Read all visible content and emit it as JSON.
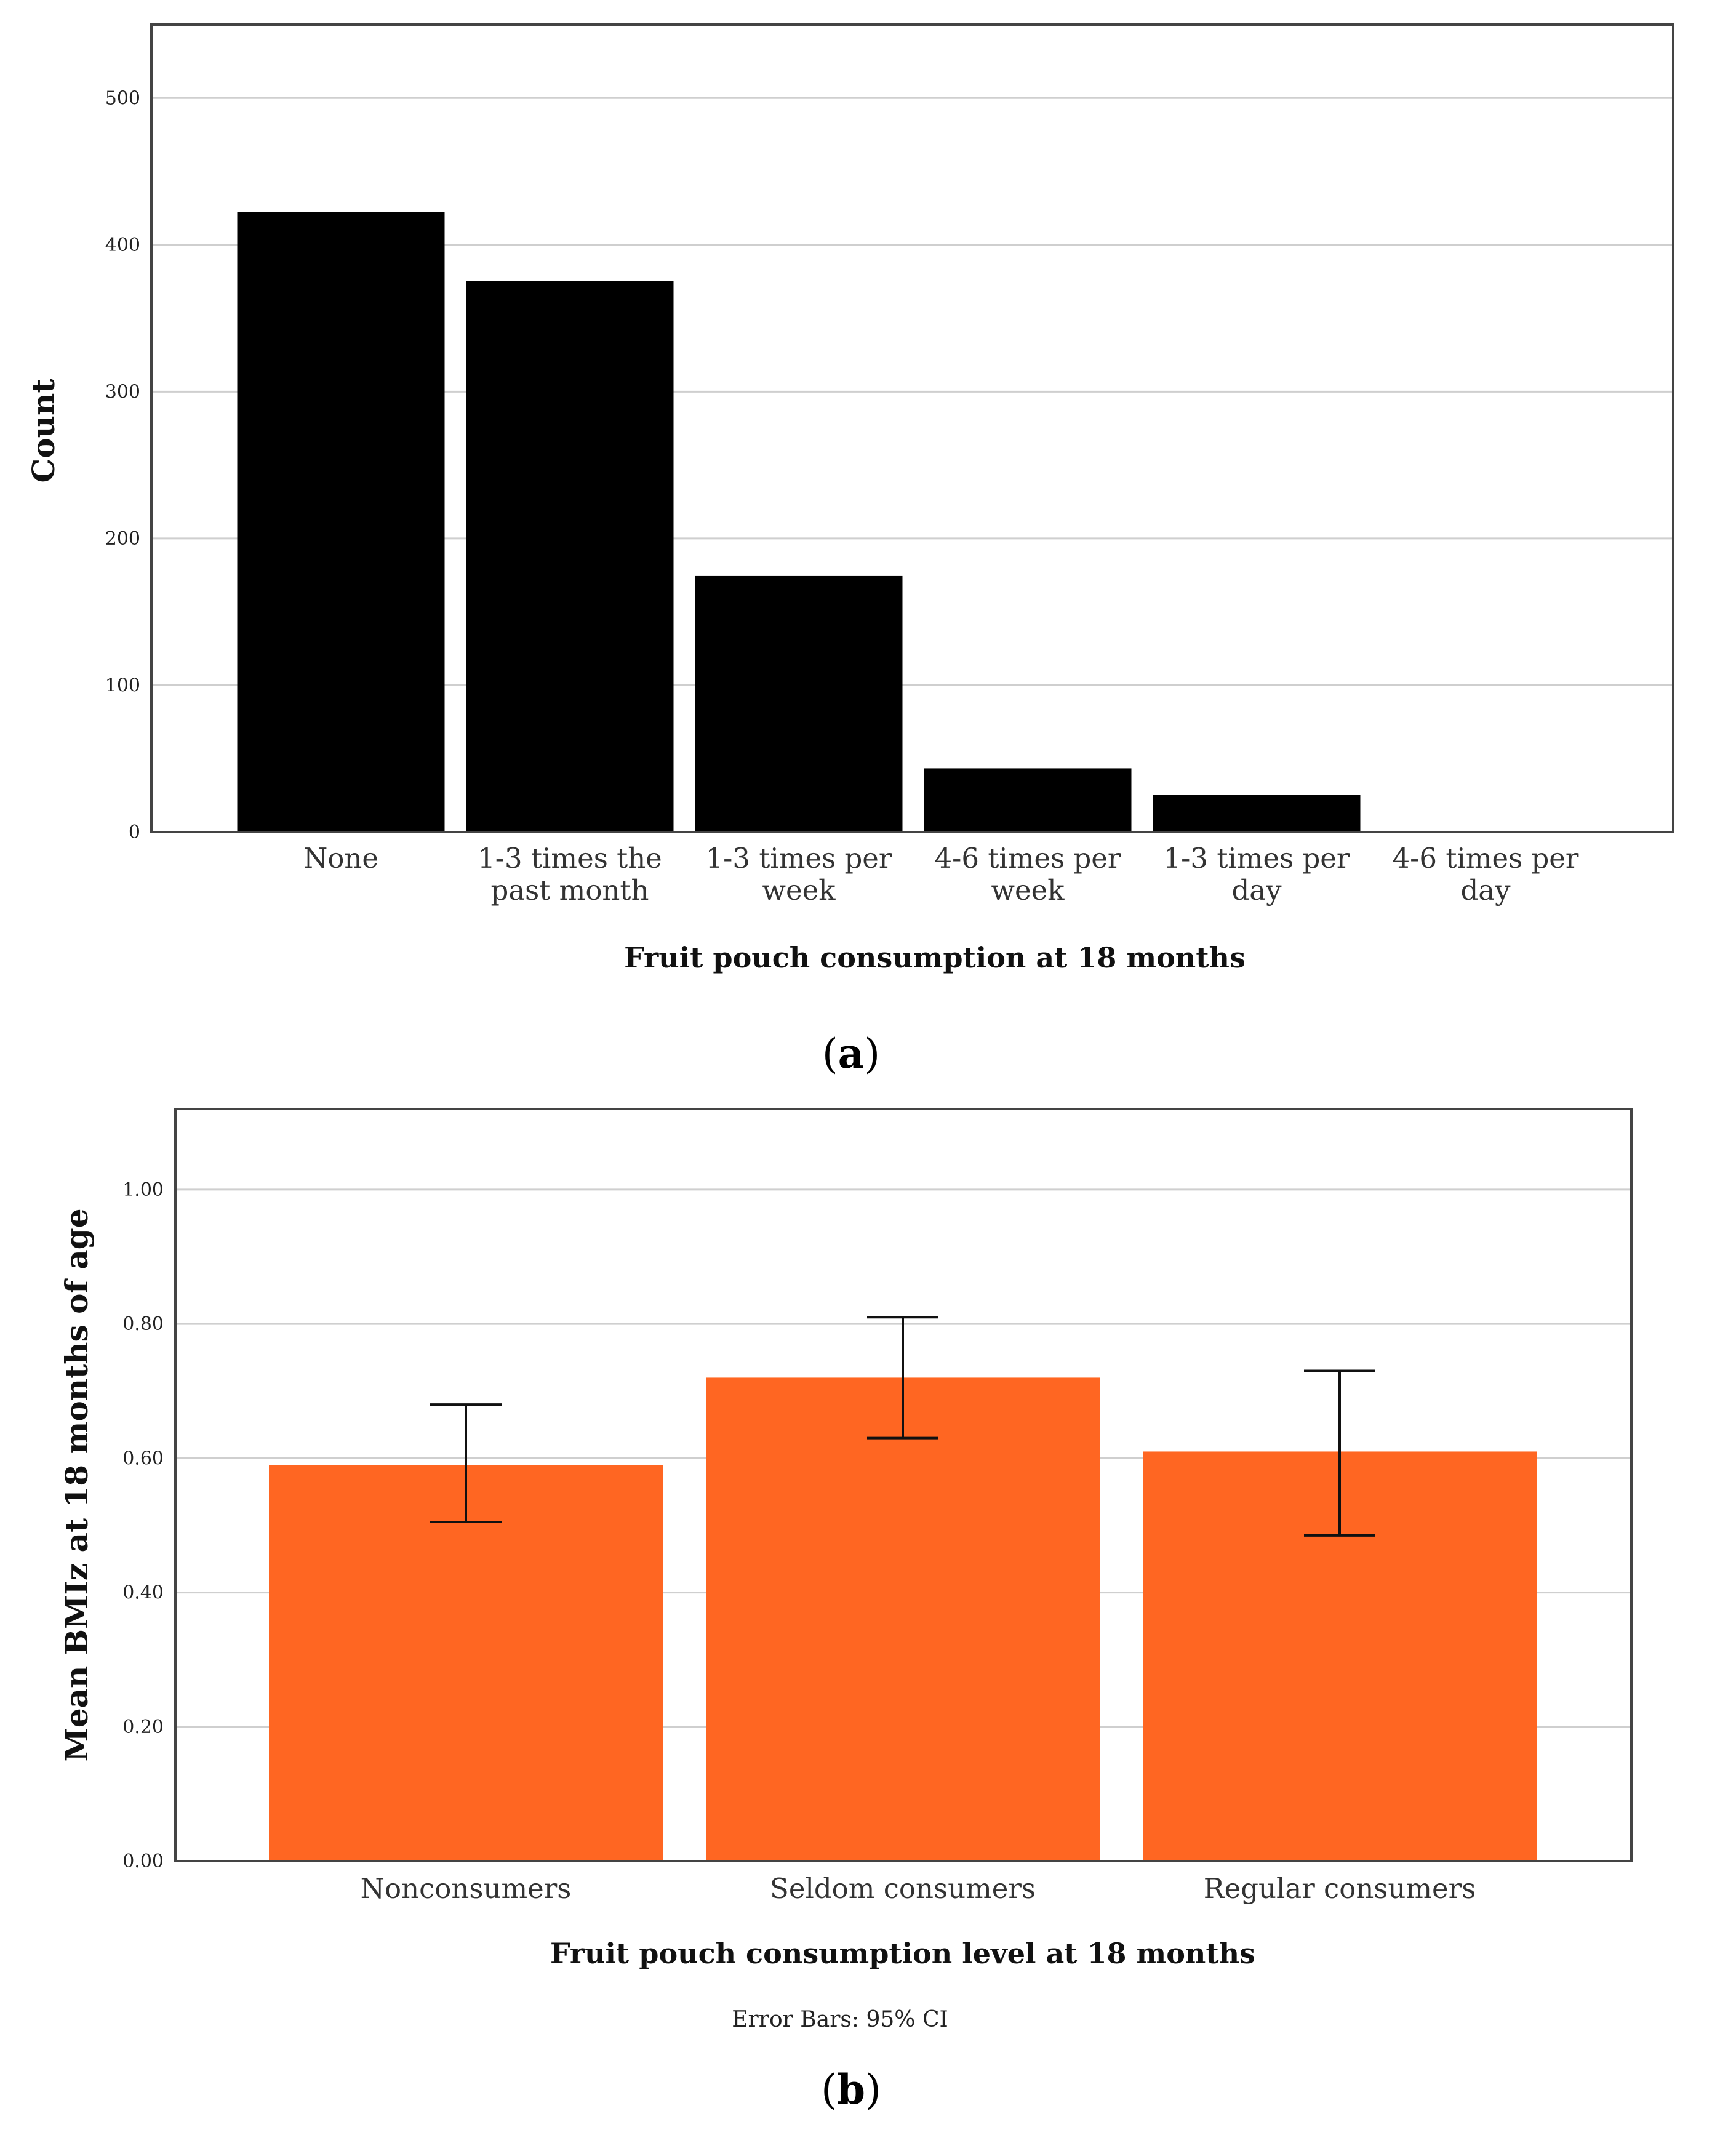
{
  "chart_data": [
    {
      "type": "bar",
      "panel_label": "a",
      "title": "",
      "xlabel": "Fruit pouch consumption at 18 months",
      "ylabel": "Count",
      "ylim": [
        0,
        550
      ],
      "yticks": [
        "0",
        "100",
        "200",
        "300",
        "400",
        "500"
      ],
      "ytick_values": [
        0,
        100,
        200,
        300,
        400,
        500
      ],
      "categories": [
        [
          "None"
        ],
        [
          "1-3 times the",
          "past month"
        ],
        [
          "1-3 times per",
          "week"
        ],
        [
          "4-6 times per",
          "week"
        ],
        [
          "1-3 times per",
          "day"
        ],
        [
          "4-6 times per",
          "day"
        ]
      ],
      "values": [
        422,
        375,
        174,
        43,
        25,
        0
      ],
      "bar_color": "#000000",
      "grid": true
    },
    {
      "type": "bar",
      "panel_label": "b",
      "title": "",
      "xlabel": "Fruit pouch consumption level at 18 months",
      "ylabel": "Mean BMIz at 18 months of age",
      "note": "Error Bars: 95% CI",
      "ylim": [
        0,
        1.12
      ],
      "yticks": [
        "0.00",
        "0.20",
        "0.40",
        "0.60",
        "0.80",
        "1.00"
      ],
      "ytick_values": [
        0,
        0.2,
        0.4,
        0.6,
        0.8,
        1.0
      ],
      "categories": [
        [
          "Nonconsumers"
        ],
        [
          "Seldom consumers"
        ],
        [
          "Regular consumers"
        ]
      ],
      "values": [
        0.59,
        0.72,
        0.61
      ],
      "ci_low": [
        0.505,
        0.63,
        0.485
      ],
      "ci_high": [
        0.68,
        0.81,
        0.73
      ],
      "bar_color": "#ff6622",
      "grid": true
    }
  ]
}
